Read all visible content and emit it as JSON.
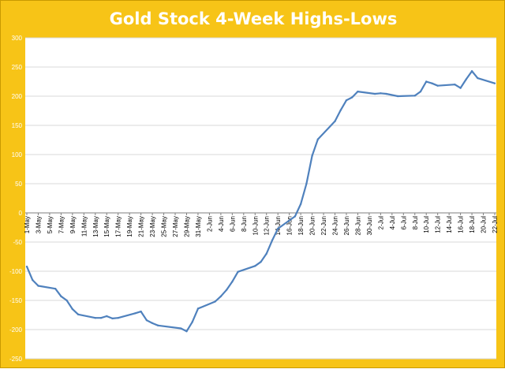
{
  "chart_data": {
    "type": "line",
    "title": "Gold Stock 4-Week Highs-Lows",
    "xlabel": "",
    "ylabel": "",
    "ylim": [
      -250,
      300
    ],
    "ytick_step": 50,
    "grid": true,
    "legend": "none",
    "x_start": "2013-05-01",
    "x_end": "2013-07-22",
    "x_tick_labels": [
      "1-May",
      "3-May",
      "5-May",
      "7-May",
      "9-May",
      "11-May",
      "13-May",
      "15-May",
      "17-May",
      "19-May",
      "21-May",
      "23-May",
      "25-May",
      "27-May",
      "29-May",
      "31-May",
      "2-Jun",
      "4-Jun",
      "6-Jun",
      "8-Jun",
      "10-Jun",
      "12-Jun",
      "14-Jun",
      "16-Jun",
      "18-Jun",
      "20-Jun",
      "22-Jun",
      "24-Jun",
      "26-Jun",
      "28-Jun",
      "30-Jun",
      "2-Jul",
      "4-Jul",
      "6-Jul",
      "8-Jul",
      "10-Jul",
      "12-Jul",
      "14-Jul",
      "16-Jul",
      "18-Jul",
      "20-Jul",
      "22-Jul"
    ],
    "colors": {
      "line": "#4f81bd",
      "background": "#f7c417",
      "plot_area": "#ffffff",
      "grid": "#d9d9d9"
    },
    "x": [
      "2013-05-01",
      "2013-05-02",
      "2013-05-03",
      "2013-05-06",
      "2013-05-07",
      "2013-05-08",
      "2013-05-09",
      "2013-05-10",
      "2013-05-13",
      "2013-05-14",
      "2013-05-15",
      "2013-05-16",
      "2013-05-17",
      "2013-05-20",
      "2013-05-21",
      "2013-05-22",
      "2013-05-23",
      "2013-05-24",
      "2013-05-28",
      "2013-05-29",
      "2013-05-30",
      "2013-05-31",
      "2013-06-03",
      "2013-06-04",
      "2013-06-05",
      "2013-06-06",
      "2013-06-07",
      "2013-06-10",
      "2013-06-11",
      "2013-06-12",
      "2013-06-13",
      "2013-06-14",
      "2013-06-17",
      "2013-06-18",
      "2013-06-19",
      "2013-06-20",
      "2013-06-21",
      "2013-06-24",
      "2013-06-25",
      "2013-06-26",
      "2013-06-27",
      "2013-06-28",
      "2013-07-01",
      "2013-07-02",
      "2013-07-03",
      "2013-07-05",
      "2013-07-08",
      "2013-07-09",
      "2013-07-10",
      "2013-07-11",
      "2013-07-12",
      "2013-07-15",
      "2013-07-16",
      "2013-07-17",
      "2013-07-18",
      "2013-07-19",
      "2013-07-22"
    ],
    "series": [
      {
        "values": [
          -92,
          -115,
          -125,
          -130,
          -143,
          -150,
          -165,
          -174,
          -180,
          -180,
          -177,
          -181,
          -180,
          -172,
          -169,
          -184,
          -189,
          -193,
          -198,
          -203,
          -187,
          -164,
          -152,
          -143,
          -132,
          -118,
          -101,
          -91,
          -84,
          -70,
          -47,
          -27,
          -6,
          15,
          50,
          98,
          126,
          157,
          176,
          193,
          198,
          208,
          204,
          205,
          204,
          200,
          201,
          208,
          225,
          222,
          218,
          220,
          214,
          229,
          243,
          231,
          222
        ]
      }
    ]
  }
}
